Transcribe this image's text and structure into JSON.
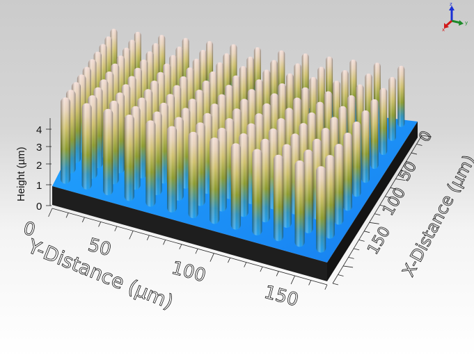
{
  "chart_data": {
    "type": "surface3d",
    "title": "",
    "description": "3D surface topography of a micropillar array",
    "axes": {
      "z": {
        "label": "Height (µm)",
        "ticks": [
          "0",
          "1",
          "2",
          "3",
          "4"
        ],
        "range": [
          0,
          4.5
        ]
      },
      "y": {
        "label": "Y-Distance (µm)",
        "ticks": [
          "0",
          "50",
          "100",
          "150"
        ],
        "range": [
          0,
          170
        ]
      },
      "x": {
        "label": "X-Distance (µm)",
        "ticks": [
          "0",
          "50",
          "100",
          "150"
        ],
        "range": [
          0,
          170
        ]
      }
    },
    "surface": {
      "base_height_um": 1.0,
      "pillar_height_um": 4.2,
      "pillar_grid": {
        "rows": 10,
        "cols": 13
      },
      "colormap": [
        "#1e6cff",
        "#18a8ff",
        "#2bb04a",
        "#b7b52a",
        "#e9d79a",
        "#f3d9d2"
      ],
      "sides_color": "#1e1e1e"
    },
    "background": {
      "top": "#cbcbcb",
      "bottom": "#ffffff"
    },
    "orientation_triad": {
      "z": {
        "label": "z",
        "color": "#1a2fd6"
      },
      "y": {
        "label": "y",
        "color": "#1d8a2a"
      },
      "x": {
        "label": "x",
        "color": "#d11a1a"
      }
    }
  },
  "labels": {
    "z_axis": "Height (µm)",
    "y_axis": "Y-Distance (µm)",
    "x_axis": "X-Distance (µm)",
    "triad_z": "z",
    "triad_y": "y",
    "triad_x": "x"
  }
}
